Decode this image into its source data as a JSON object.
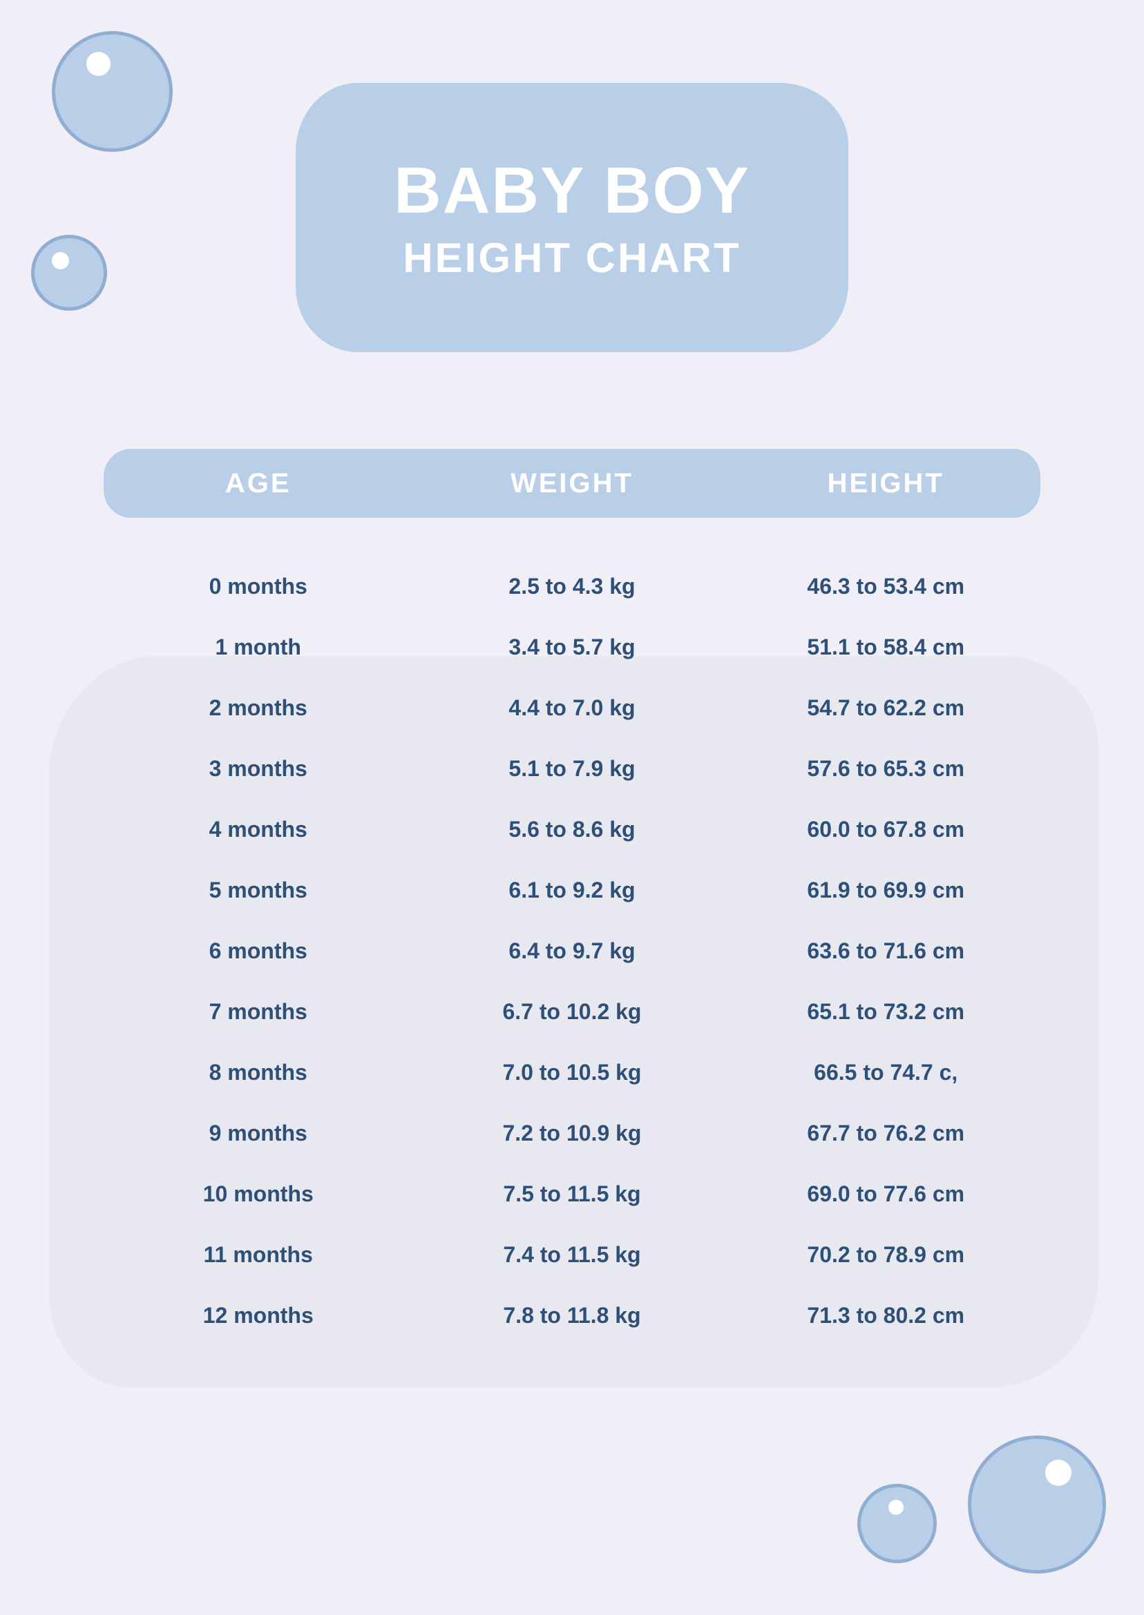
{
  "colors": {
    "page_bg": "#f0eff7",
    "bubble_fill": "#b9cee7",
    "bubble_border": "#8faed2",
    "bubble_shine": "#ffffff",
    "banner_bg": "#b9cee7",
    "banner_text": "#ffffff",
    "table_header_bg": "#b9cee7",
    "table_header_text": "#ffffff",
    "table_body_text": "#2e4f77",
    "blob_bg": "#e7e8f0"
  },
  "header": {
    "title": "BABY BOY",
    "subtitle": "HEIGHT CHART",
    "title_fontsize": 95,
    "subtitle_fontsize": 60
  },
  "table": {
    "type": "table",
    "columns": {
      "age": "AGE",
      "weight": "WEIGHT",
      "height": "HEIGHT"
    },
    "header_fontsize": 40,
    "row_fontsize": 32,
    "rows": [
      {
        "age": "0 months",
        "weight": "2.5 to 4.3 kg",
        "height": "46.3 to 53.4 cm"
      },
      {
        "age": "1 month",
        "weight": "3.4 to 5.7 kg",
        "height": "51.1 to 58.4 cm"
      },
      {
        "age": "2 months",
        "weight": "4.4 to 7.0 kg",
        "height": "54.7 to 62.2 cm"
      },
      {
        "age": "3 months",
        "weight": "5.1 to 7.9 kg",
        "height": "57.6 to 65.3 cm"
      },
      {
        "age": "4 months",
        "weight": "5.6 to 8.6 kg",
        "height": "60.0 to 67.8 cm"
      },
      {
        "age": "5 months",
        "weight": "6.1 to 9.2 kg",
        "height": "61.9 to 69.9 cm"
      },
      {
        "age": "6 months",
        "weight": "6.4 to 9.7 kg",
        "height": "63.6 to 71.6 cm"
      },
      {
        "age": "7 months",
        "weight": "6.7 to 10.2 kg",
        "height": "65.1 to 73.2 cm"
      },
      {
        "age": "8 months",
        "weight": "7.0 to 10.5 kg",
        "height": "66.5 to 74.7 c,"
      },
      {
        "age": "9 months",
        "weight": "7.2 to 10.9 kg",
        "height": "67.7 to 76.2 cm"
      },
      {
        "age": "10 months",
        "weight": "7.5 to 11.5 kg",
        "height": "69.0 to 77.6 cm"
      },
      {
        "age": "11 months",
        "weight": "7.4 to 11.5 kg",
        "height": "70.2 to 78.9 cm"
      },
      {
        "age": "12 months",
        "weight": "7.8 to 11.8 kg",
        "height": "71.3 to 80.2 cm"
      }
    ]
  }
}
